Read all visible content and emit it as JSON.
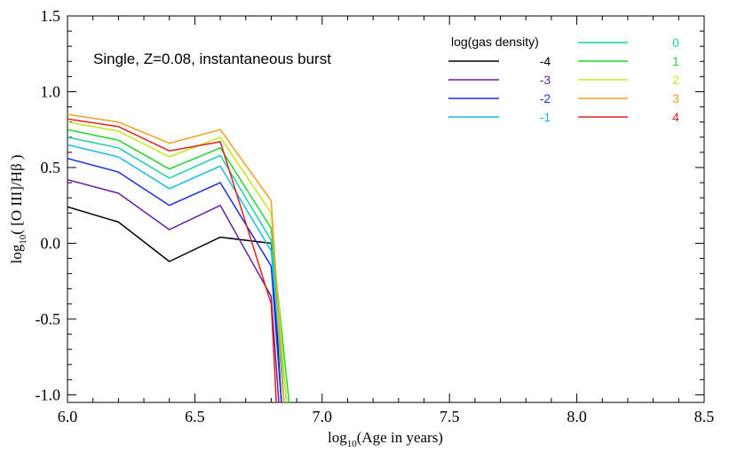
{
  "chart_data": {
    "type": "line",
    "title": "",
    "annotation": "Single, Z=0.08, instantaneous burst",
    "xlabel": {
      "main": "log",
      "sub": "10",
      "rest": "(Age in years)"
    },
    "ylabel": {
      "main": "log",
      "sub": "10",
      "rest": "( [O III]/Hβ )"
    },
    "xlim": [
      6.0,
      8.5
    ],
    "ylim": [
      -1.05,
      1.5
    ],
    "xticks": [
      6.0,
      6.5,
      7.0,
      7.5,
      8.0,
      8.5
    ],
    "xtick_labels": [
      "6.0",
      "6.5",
      "7.0",
      "7.5",
      "8.0",
      "8.5"
    ],
    "yticks": [
      -1.0,
      -0.5,
      0.0,
      0.5,
      1.0,
      1.5
    ],
    "ytick_labels": [
      "-1.0",
      "-0.5",
      "0.0",
      "0.5",
      "1.0",
      "1.5"
    ],
    "grid": false,
    "legend": {
      "title": "log(gas density)",
      "placement": "top-right"
    },
    "series": [
      {
        "name": "-4",
        "color": "#000000",
        "x": [
          6.0,
          6.2,
          6.4,
          6.6,
          6.8,
          6.84
        ],
        "y": [
          0.24,
          0.14,
          -0.12,
          0.04,
          0.0,
          -1.05
        ]
      },
      {
        "name": "-3",
        "color": "#6a1fa0",
        "x": [
          6.0,
          6.2,
          6.4,
          6.6,
          6.8,
          6.83
        ],
        "y": [
          0.42,
          0.33,
          0.09,
          0.25,
          -0.35,
          -1.05
        ]
      },
      {
        "name": "-2",
        "color": "#1a2ee0",
        "x": [
          6.0,
          6.2,
          6.4,
          6.6,
          6.8,
          6.84
        ],
        "y": [
          0.56,
          0.47,
          0.25,
          0.4,
          -0.15,
          -1.05
        ]
      },
      {
        "name": "-1",
        "color": "#19b9e6",
        "x": [
          6.0,
          6.2,
          6.4,
          6.6,
          6.8,
          6.85
        ],
        "y": [
          0.65,
          0.57,
          0.36,
          0.51,
          -0.05,
          -1.05
        ]
      },
      {
        "name": "0",
        "color": "#19d2a0",
        "x": [
          6.0,
          6.2,
          6.4,
          6.6,
          6.8,
          6.86
        ],
        "y": [
          0.7,
          0.63,
          0.43,
          0.58,
          0.02,
          -1.05
        ]
      },
      {
        "name": "1",
        "color": "#22d42a",
        "x": [
          6.0,
          6.2,
          6.4,
          6.6,
          6.8,
          6.87
        ],
        "y": [
          0.75,
          0.68,
          0.49,
          0.63,
          0.1,
          -1.05
        ]
      },
      {
        "name": "2",
        "color": "#c8e620",
        "x": [
          6.0,
          6.2,
          6.4,
          6.6,
          6.8,
          6.86
        ],
        "y": [
          0.8,
          0.74,
          0.57,
          0.7,
          0.2,
          -1.05
        ]
      },
      {
        "name": "3",
        "color": "#f0a020",
        "x": [
          6.0,
          6.2,
          6.4,
          6.6,
          6.8,
          6.85
        ],
        "y": [
          0.85,
          0.8,
          0.66,
          0.75,
          0.28,
          -1.05
        ]
      },
      {
        "name": "4",
        "color": "#e02020",
        "x": [
          6.0,
          6.2,
          6.4,
          6.6,
          6.8,
          6.82
        ],
        "y": [
          0.82,
          0.77,
          0.61,
          0.67,
          -0.4,
          -1.05
        ]
      }
    ]
  }
}
